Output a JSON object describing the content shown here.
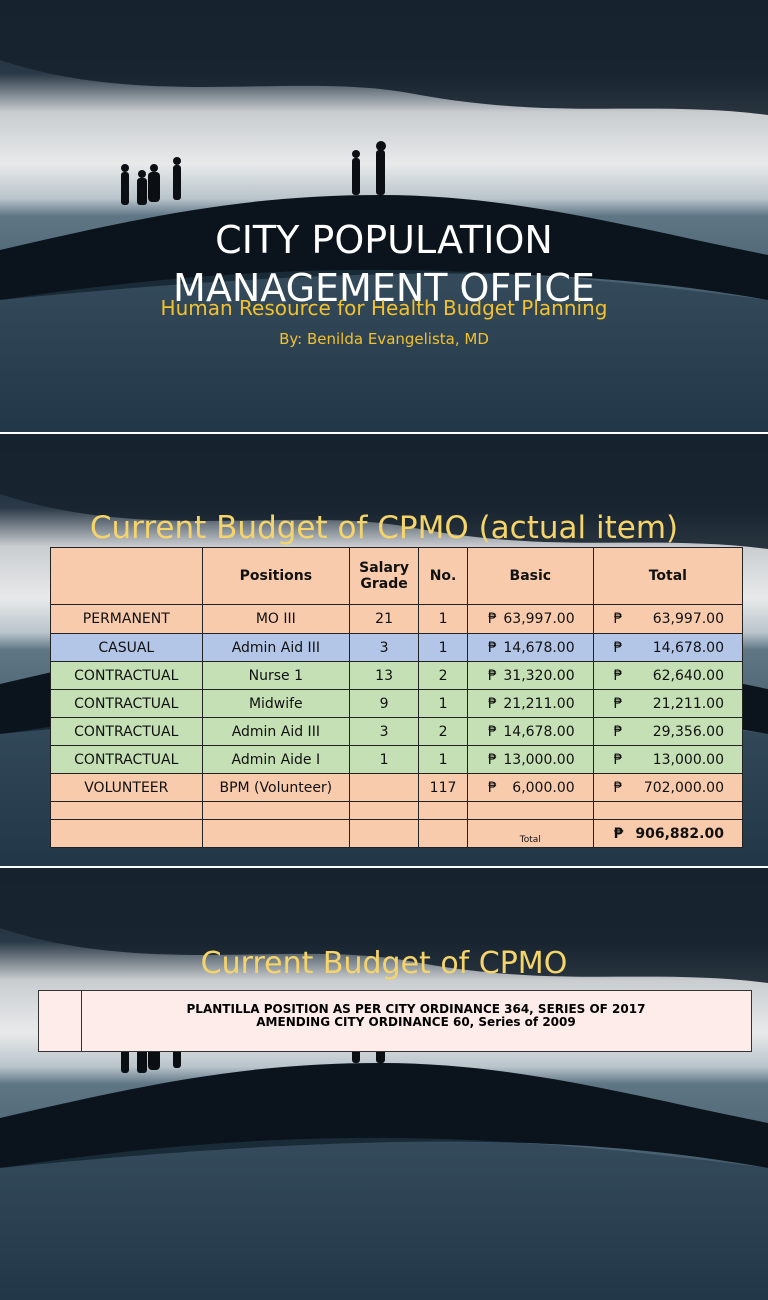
{
  "slide1": {
    "title": "CITY POPULATION MANAGEMENT OFFICE",
    "subtitle": "Human Resource for Health Budget Planning",
    "author": "By: Benilda Evangelista, MD"
  },
  "slide2": {
    "title": "Current Budget of CPMO (actual item)",
    "table": {
      "header": [
        "",
        "Positions",
        "Salary Grade",
        "No.",
        "Basic",
        "Total"
      ],
      "currency": "₱",
      "rows": [
        {
          "type": "PERMANENT",
          "position": "MO III",
          "grade": "21",
          "no": "1",
          "basic": "63,997.00",
          "total": "63,997.00"
        },
        {
          "type": "CASUAL",
          "position": "Admin Aid III",
          "grade": "3",
          "no": "1",
          "basic": "14,678.00",
          "total": "14,678.00"
        },
        {
          "type": "CONTRACTUAL",
          "position": "Nurse 1",
          "grade": "13",
          "no": "2",
          "basic": "31,320.00",
          "total": "62,640.00"
        },
        {
          "type": "CONTRACTUAL",
          "position": "Midwife",
          "grade": "9",
          "no": "1",
          "basic": "21,211.00",
          "total": "21,211.00"
        },
        {
          "type": "CONTRACTUAL",
          "position": "Admin Aid III",
          "grade": "3",
          "no": "2",
          "basic": "14,678.00",
          "total": "29,356.00"
        },
        {
          "type": "CONTRACTUAL",
          "position": "Admin Aide I",
          "grade": "1",
          "no": "1",
          "basic": "13,000.00",
          "total": "13,000.00"
        },
        {
          "type": "VOLUNTEER",
          "position": "BPM (Volunteer)",
          "grade": "",
          "no": "117",
          "basic": "6,000.00",
          "total": "702,000.00"
        }
      ],
      "total_label": "Total",
      "grand_total": "906,882.00"
    }
  },
  "slide3": {
    "title": "Current Budget of CPMO",
    "table_heading": [
      "PLANTILLA POSITION AS PER CITY ORDINANCE 364, SERIES OF 2017",
      "AMENDING CITY ORDINANCE 60, Series of 2009"
    ]
  }
}
